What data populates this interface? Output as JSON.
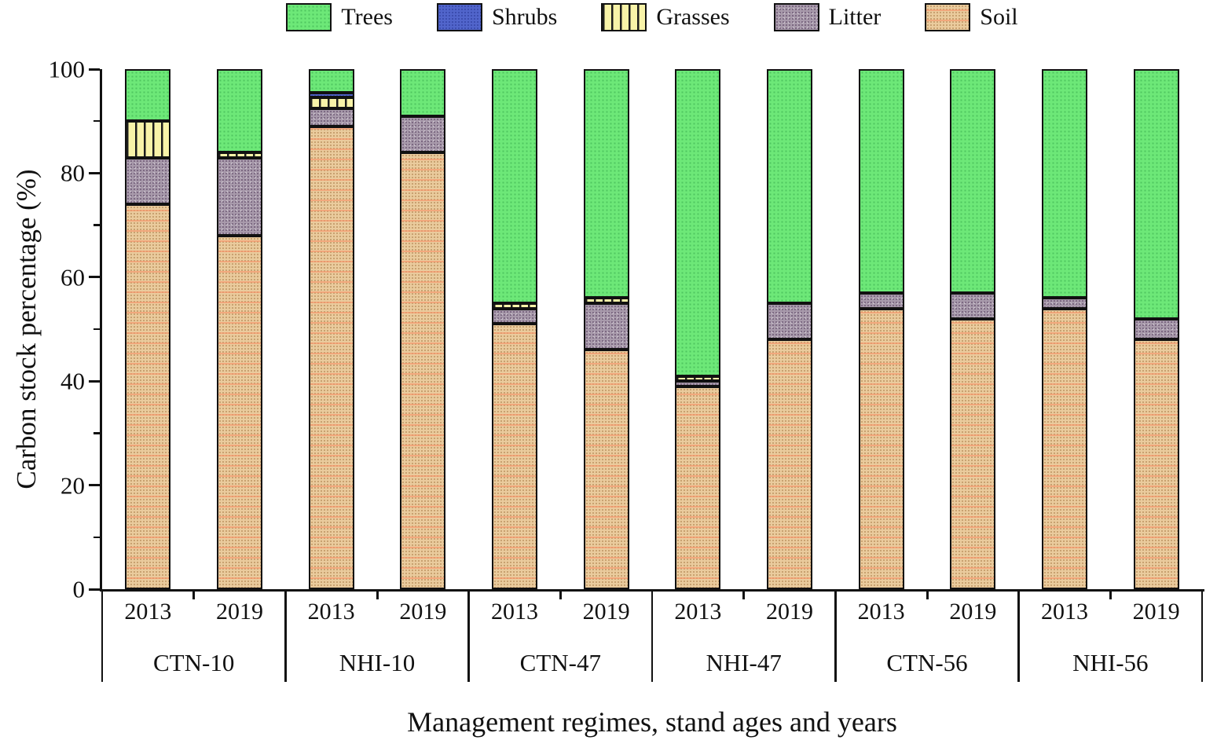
{
  "colors": {
    "trees": "#6de878",
    "shrubs": "#5165cb",
    "grasses": "#f8f3a8",
    "litter": "#a89aab",
    "soil": "#eacb9d",
    "ink": "#111111",
    "background": "#ffffff"
  },
  "legend": [
    {
      "key": "trees",
      "label": "Trees"
    },
    {
      "key": "shrubs",
      "label": "Shrubs"
    },
    {
      "key": "grasses",
      "label": "Grasses"
    },
    {
      "key": "litter",
      "label": "Litter"
    },
    {
      "key": "soil",
      "label": "Soil"
    }
  ],
  "chart_data": {
    "type": "bar",
    "subtype": "stacked-percentage",
    "title": "",
    "xlabel": "Management regimes, stand ages and years",
    "ylabel": "Carbon stock percentage (%)",
    "ylim": [
      0,
      100
    ],
    "yticks_major": [
      0,
      20,
      40,
      60,
      80,
      100
    ],
    "yticks_minor": [
      10,
      30,
      50,
      70,
      90
    ],
    "grid": false,
    "legend_position": "top-center",
    "groups": [
      "CTN-10",
      "NHI-10",
      "CTN-47",
      "NHI-47",
      "CTN-56",
      "NHI-56"
    ],
    "years": [
      "2013",
      "2019"
    ],
    "bar_labels": [
      "CTN-10 2013",
      "CTN-10 2019",
      "NHI-10 2013",
      "NHI-10 2019",
      "CTN-47 2013",
      "CTN-47 2019",
      "NHI-47 2013",
      "NHI-47 2019",
      "CTN-56 2013",
      "CTN-56 2019",
      "NHI-56 2013",
      "NHI-56 2019"
    ],
    "series": [
      {
        "key": "soil",
        "name": "Soil",
        "values": [
          74,
          68,
          89,
          84,
          51,
          46,
          39,
          48,
          54,
          52,
          54,
          48
        ]
      },
      {
        "key": "litter",
        "name": "Litter",
        "values": [
          9,
          15,
          3.5,
          7,
          3,
          9,
          1,
          7,
          3,
          5,
          2,
          4
        ]
      },
      {
        "key": "grasses",
        "name": "Grasses",
        "values": [
          7,
          1,
          2,
          0,
          1,
          1,
          1,
          0,
          0,
          0,
          0,
          0
        ]
      },
      {
        "key": "shrubs",
        "name": "Shrubs",
        "values": [
          0,
          0,
          1,
          0,
          0,
          0,
          0,
          0,
          0,
          0,
          0,
          0
        ]
      },
      {
        "key": "trees",
        "name": "Trees",
        "values": [
          10,
          16,
          4.5,
          9,
          45,
          44,
          59,
          45,
          43,
          43,
          44,
          48
        ]
      }
    ]
  }
}
